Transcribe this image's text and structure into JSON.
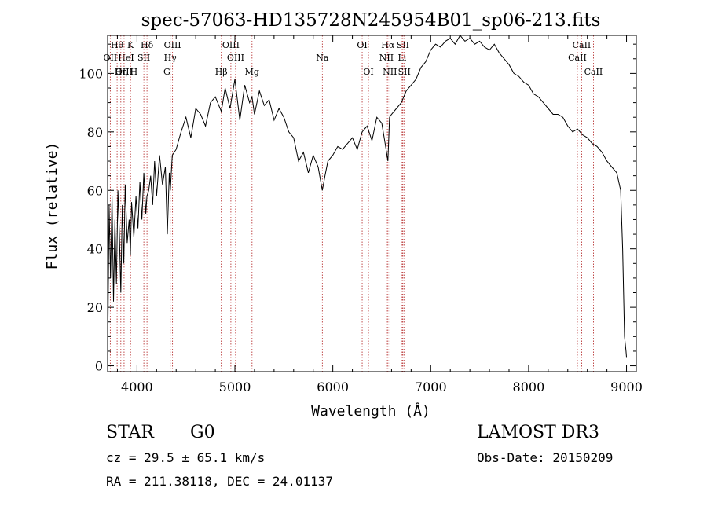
{
  "chart_data": {
    "type": "line",
    "title": "spec-57063-HD135728N245954B01_sp06-213.fits",
    "xlabel": "Wavelength (Å)",
    "ylabel": "Flux (relative)",
    "xlim": [
      3700,
      9100
    ],
    "ylim": [
      -2,
      113
    ],
    "x_ticks": [
      4000,
      5000,
      6000,
      7000,
      8000,
      9000
    ],
    "x_tick_labels": [
      "4000",
      "5000",
      "6000",
      "7000",
      "8000",
      "9000"
    ],
    "y_ticks": [
      0,
      20,
      40,
      60,
      80,
      100
    ],
    "y_tick_labels": [
      "0",
      "20",
      "40",
      "60",
      "80",
      "100"
    ],
    "grid": false,
    "line_color": "#000000",
    "marker_color": "#b22222",
    "series": [
      {
        "x": [
          3700,
          3715,
          3730,
          3745,
          3760,
          3775,
          3790,
          3805,
          3820,
          3835,
          3850,
          3865,
          3880,
          3900,
          3920,
          3933,
          3945,
          3968,
          3990,
          4010,
          4030,
          4050,
          4070,
          4090,
          4101,
          4120,
          4140,
          4160,
          4180,
          4200,
          4230,
          4260,
          4290,
          4310,
          4330,
          4340,
          4360,
          4400,
          4450,
          4500,
          4550,
          4600,
          4650,
          4700,
          4750,
          4800,
          4861,
          4900,
          4950,
          5000,
          5050,
          5100,
          5150,
          5175,
          5200,
          5250,
          5300,
          5350,
          5400,
          5450,
          5500,
          5550,
          5600,
          5650,
          5700,
          5750,
          5800,
          5850,
          5893,
          5920,
          5950,
          6000,
          6050,
          6100,
          6150,
          6200,
          6250,
          6300,
          6350,
          6400,
          6450,
          6500,
          6540,
          6563,
          6580,
          6600,
          6650,
          6700,
          6750,
          6800,
          6850,
          6900,
          6950,
          7000,
          7050,
          7100,
          7150,
          7200,
          7250,
          7300,
          7350,
          7400,
          7450,
          7500,
          7550,
          7600,
          7650,
          7700,
          7750,
          7800,
          7850,
          7900,
          7950,
          8000,
          8050,
          8100,
          8150,
          8200,
          8250,
          8300,
          8350,
          8400,
          8450,
          8500,
          8550,
          8600,
          8650,
          8700,
          8750,
          8800,
          8850,
          8900,
          8940,
          8960,
          8980,
          8995,
          9000
        ],
        "y": [
          2,
          55,
          30,
          58,
          22,
          50,
          28,
          60,
          45,
          25,
          55,
          35,
          62,
          42,
          50,
          38,
          56,
          44,
          58,
          47,
          63,
          50,
          66,
          52,
          58,
          60,
          65,
          55,
          70,
          58,
          72,
          62,
          68,
          45,
          66,
          60,
          72,
          74,
          80,
          85,
          78,
          88,
          86,
          82,
          90,
          92,
          87,
          95,
          88,
          98,
          84,
          96,
          90,
          92,
          86,
          94,
          89,
          91,
          84,
          88,
          85,
          80,
          78,
          70,
          73,
          66,
          72,
          68,
          60,
          65,
          70,
          72,
          75,
          74,
          76,
          78,
          74,
          80,
          82,
          77,
          85,
          83,
          75,
          70,
          85,
          86,
          88,
          90,
          94,
          96,
          98,
          102,
          104,
          108,
          110,
          109,
          111,
          112,
          110,
          113,
          111,
          112,
          110,
          111,
          109,
          108,
          110,
          107,
          105,
          103,
          100,
          99,
          97,
          96,
          93,
          92,
          90,
          88,
          86,
          86,
          85,
          82,
          80,
          81,
          79,
          78,
          76,
          75,
          73,
          70,
          68,
          66,
          60,
          40,
          10,
          5,
          3
        ]
      }
    ],
    "line_markers": [
      {
        "label": "Hθ",
        "x": 3797,
        "row": 1
      },
      {
        "label": "K",
        "x": 3934,
        "row": 1
      },
      {
        "label": "Hδ",
        "x": 4102,
        "row": 1
      },
      {
        "label": "OIII",
        "x": 4363,
        "row": 1
      },
      {
        "label": "OIII",
        "x": 4959,
        "row": 1
      },
      {
        "label": "OI",
        "x": 6300,
        "row": 1
      },
      {
        "label": "Hα",
        "x": 6563,
        "row": 1
      },
      {
        "label": "SII",
        "x": 6716,
        "row": 1
      },
      {
        "label": "CaII",
        "x": 8542,
        "row": 1
      },
      {
        "label": "OII",
        "x": 3727,
        "row": 2
      },
      {
        "label": "HeI",
        "x": 3889,
        "row": 2
      },
      {
        "label": "SII",
        "x": 4070,
        "row": 2
      },
      {
        "label": "Hγ",
        "x": 4340,
        "row": 2
      },
      {
        "label": "OIII",
        "x": 5007,
        "row": 2
      },
      {
        "label": "Na",
        "x": 5893,
        "row": 2
      },
      {
        "label": "NII",
        "x": 6548,
        "row": 2
      },
      {
        "label": "Li",
        "x": 6708,
        "row": 2
      },
      {
        "label": "CaII",
        "x": 8498,
        "row": 2
      },
      {
        "label": "OIII",
        "x": 3868,
        "row": 3
      },
      {
        "label": "Hη",
        "x": 3835,
        "row": 3
      },
      {
        "label": "H",
        "x": 3968,
        "row": 3
      },
      {
        "label": "G",
        "x": 4305,
        "row": 3
      },
      {
        "label": "Hβ",
        "x": 4861,
        "row": 3
      },
      {
        "label": "Mg",
        "x": 5175,
        "row": 3
      },
      {
        "label": "OI",
        "x": 6364,
        "row": 3
      },
      {
        "label": "NII",
        "x": 6583,
        "row": 3
      },
      {
        "label": "SII",
        "x": 6731,
        "row": 3
      },
      {
        "label": "CaII",
        "x": 8662,
        "row": 3
      }
    ]
  },
  "info": {
    "object_class": "STAR",
    "subclass": "G0",
    "survey": "LAMOST DR3",
    "cz": "cz = 29.5 ± 65.1 km/s",
    "obs_date": "Obs-Date: 20150209",
    "coords": "RA = 211.38118, DEC =  24.01137"
  }
}
